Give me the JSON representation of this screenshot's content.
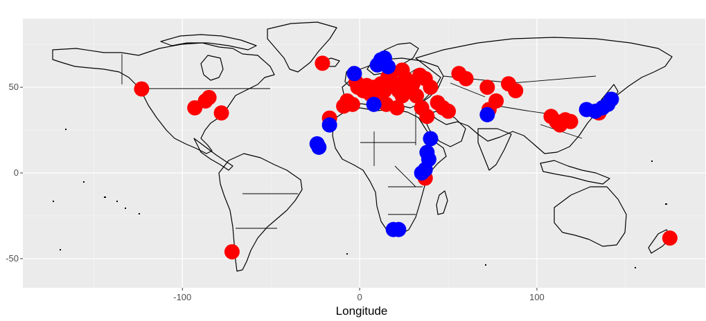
{
  "chart_data": {
    "type": "scatter",
    "title": "",
    "xlabel": "Longitude",
    "ylabel": "",
    "xlim": [
      -190,
      195
    ],
    "ylim": [
      -67,
      90
    ],
    "x_ticks": [
      -100,
      0,
      100
    ],
    "x_tick_labels": [
      "-100",
      "0",
      "100"
    ],
    "y_ticks": [
      -50,
      0,
      50
    ],
    "y_tick_labels": [
      "-50",
      "0",
      "50"
    ],
    "grid": true,
    "background": "#ebebeb",
    "legend": "none",
    "colors": {
      "red": "#ff0000",
      "blue": "#0000ff"
    },
    "series": [
      {
        "color": "#ff0000",
        "points": [
          [
            -123,
            49
          ],
          [
            -93,
            38
          ],
          [
            -87,
            42
          ],
          [
            -85,
            44
          ],
          [
            -78,
            35
          ],
          [
            -21,
            64
          ],
          [
            -17,
            32
          ],
          [
            -9,
            39
          ],
          [
            -7,
            42
          ],
          [
            -4,
            40
          ],
          [
            -2,
            53
          ],
          [
            -1,
            50
          ],
          [
            2,
            48
          ],
          [
            4,
            51
          ],
          [
            6,
            46
          ],
          [
            8,
            50
          ],
          [
            10,
            45
          ],
          [
            12,
            52
          ],
          [
            14,
            48
          ],
          [
            16,
            56
          ],
          [
            18,
            59
          ],
          [
            20,
            52
          ],
          [
            22,
            48
          ],
          [
            24,
            45
          ],
          [
            15,
            40
          ],
          [
            21,
            38
          ],
          [
            24,
            60
          ],
          [
            26,
            55
          ],
          [
            28,
            48
          ],
          [
            30,
            52
          ],
          [
            32,
            45
          ],
          [
            34,
            57
          ],
          [
            37,
            55
          ],
          [
            40,
            50
          ],
          [
            35,
            38
          ],
          [
            38,
            33
          ],
          [
            44,
            41
          ],
          [
            47,
            38
          ],
          [
            50,
            36
          ],
          [
            56,
            58
          ],
          [
            60,
            55
          ],
          [
            72,
            50
          ],
          [
            73,
            37
          ],
          [
            77,
            42
          ],
          [
            84,
            52
          ],
          [
            88,
            48
          ],
          [
            108,
            33
          ],
          [
            111,
            30
          ],
          [
            113,
            28
          ],
          [
            116,
            31
          ],
          [
            119,
            30
          ],
          [
            135,
            35
          ],
          [
            37,
            -3
          ],
          [
            -72,
            -46
          ],
          [
            175,
            -38
          ]
        ]
      },
      {
        "color": "#0000ff",
        "points": [
          [
            -17,
            28
          ],
          [
            -24,
            17
          ],
          [
            -23,
            15
          ],
          [
            -3,
            58
          ],
          [
            10,
            63
          ],
          [
            12,
            66
          ],
          [
            14,
            67
          ],
          [
            16,
            62
          ],
          [
            8,
            40
          ],
          [
            40,
            20
          ],
          [
            38,
            12
          ],
          [
            39,
            8
          ],
          [
            37,
            2
          ],
          [
            35,
            0
          ],
          [
            19,
            -33
          ],
          [
            22,
            -33
          ],
          [
            72,
            34
          ],
          [
            128,
            37
          ],
          [
            133,
            36
          ],
          [
            137,
            38
          ],
          [
            140,
            40
          ],
          [
            142,
            43
          ]
        ]
      }
    ]
  }
}
